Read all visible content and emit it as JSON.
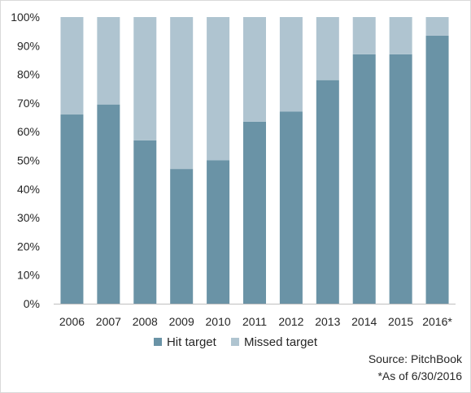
{
  "chart_data": {
    "type": "bar",
    "stacked": true,
    "categories": [
      "2006",
      "2007",
      "2008",
      "2009",
      "2010",
      "2011",
      "2012",
      "2013",
      "2014",
      "2015",
      "2016*"
    ],
    "series": [
      {
        "name": "Hit target",
        "color": "#6a93a6",
        "values": [
          66,
          69.5,
          57,
          47,
          50,
          63.5,
          67,
          78,
          87,
          87,
          93.5
        ]
      },
      {
        "name": "Missed target",
        "color": "#afc4d0",
        "values": [
          34,
          30.5,
          43,
          53,
          50,
          36.5,
          33,
          22,
          13,
          13,
          6.5
        ]
      }
    ],
    "ylim": [
      0,
      100
    ],
    "yticks": [
      0,
      10,
      20,
      30,
      40,
      50,
      60,
      70,
      80,
      90,
      100
    ],
    "ytick_format": "percent",
    "grid": false,
    "legend_position": "bottom",
    "title": "",
    "xlabel": "",
    "ylabel": ""
  },
  "source": "Source: PitchBook",
  "footnote": "*As of 6/30/2016"
}
